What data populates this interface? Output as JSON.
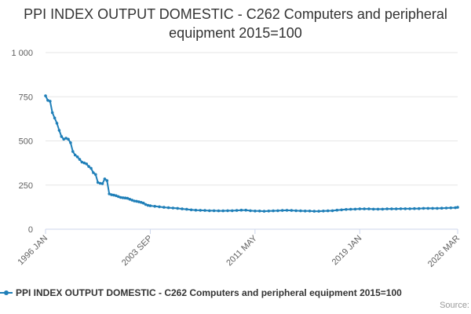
{
  "chart_data": {
    "type": "line",
    "title": "PPI INDEX OUTPUT DOMESTIC - C262 Computers and peripheral equipment 2015=100",
    "xlabel": "",
    "ylabel": "",
    "ylim": [
      0,
      1000
    ],
    "yticks": [
      "0",
      "250",
      "500",
      "750",
      "1 000"
    ],
    "xticks": [
      "1996 JAN",
      "2003 SEP",
      "2011 MAY",
      "2019 JAN",
      "2026 MAR"
    ],
    "grid": true,
    "legend_position": "bottom",
    "colors": {
      "series": "#1f7fb8",
      "grid": "#e6e6e6",
      "axis": "#ccd6eb"
    },
    "series": [
      {
        "name": "PPI INDEX OUTPUT DOMESTIC - C262 Computers and peripheral equipment 2015=100",
        "x": [
          "1996-01",
          "1996-03",
          "1996-05",
          "1996-07",
          "1996-09",
          "1996-11",
          "1997-01",
          "1997-03",
          "1997-05",
          "1997-07",
          "1997-09",
          "1997-11",
          "1998-01",
          "1998-03",
          "1998-05",
          "1998-07",
          "1998-09",
          "1998-11",
          "1999-01",
          "1999-03",
          "1999-05",
          "1999-07",
          "1999-09",
          "1999-11",
          "2000-01",
          "2000-03",
          "2000-05",
          "2000-07",
          "2000-09",
          "2000-11",
          "2001-01",
          "2001-03",
          "2001-05",
          "2001-07",
          "2001-09",
          "2001-11",
          "2002-01",
          "2002-03",
          "2002-05",
          "2002-07",
          "2002-09",
          "2002-11",
          "2003-01",
          "2003-03",
          "2003-05",
          "2003-07",
          "2003-09",
          "2004-01",
          "2004-05",
          "2004-09",
          "2005-01",
          "2005-05",
          "2005-09",
          "2006-01",
          "2006-05",
          "2006-09",
          "2007-01",
          "2007-05",
          "2007-09",
          "2008-01",
          "2008-05",
          "2008-09",
          "2009-01",
          "2009-05",
          "2009-09",
          "2010-01",
          "2010-05",
          "2010-09",
          "2011-01",
          "2011-05",
          "2011-09",
          "2012-01",
          "2012-05",
          "2012-09",
          "2013-01",
          "2013-05",
          "2013-09",
          "2014-01",
          "2014-05",
          "2014-09",
          "2015-01",
          "2015-05",
          "2015-09",
          "2016-01",
          "2016-05",
          "2016-09",
          "2017-01",
          "2017-05",
          "2017-09",
          "2018-01",
          "2018-05",
          "2018-09",
          "2019-01",
          "2019-05",
          "2019-09",
          "2020-01",
          "2020-05",
          "2020-09",
          "2021-01",
          "2021-05",
          "2021-09",
          "2022-01",
          "2022-05",
          "2022-09",
          "2023-01",
          "2023-05",
          "2023-09",
          "2024-01",
          "2024-05",
          "2024-09",
          "2025-01",
          "2025-05",
          "2025-09",
          "2026-01",
          "2026-03"
        ],
        "values": [
          755,
          730,
          725,
          660,
          630,
          600,
          560,
          525,
          510,
          515,
          510,
          490,
          440,
          420,
          410,
          395,
          380,
          375,
          370,
          355,
          345,
          320,
          310,
          265,
          260,
          258,
          285,
          275,
          200,
          195,
          193,
          190,
          185,
          180,
          178,
          177,
          175,
          170,
          165,
          160,
          158,
          155,
          152,
          148,
          140,
          135,
          133,
          130,
          127,
          124,
          122,
          120,
          118,
          115,
          113,
          110,
          108,
          107,
          106,
          105,
          105,
          104,
          104,
          105,
          105,
          106,
          108,
          108,
          105,
          103,
          103,
          102,
          103,
          104,
          105,
          106,
          107,
          106,
          105,
          104,
          103,
          103,
          102,
          102,
          103,
          104,
          105,
          108,
          110,
          112,
          113,
          114,
          115,
          115,
          115,
          114,
          114,
          114,
          115,
          115,
          115,
          116,
          116,
          116,
          117,
          117,
          118,
          118,
          118,
          118,
          119,
          120,
          121,
          122,
          124
        ]
      }
    ]
  },
  "credit": "Source:"
}
